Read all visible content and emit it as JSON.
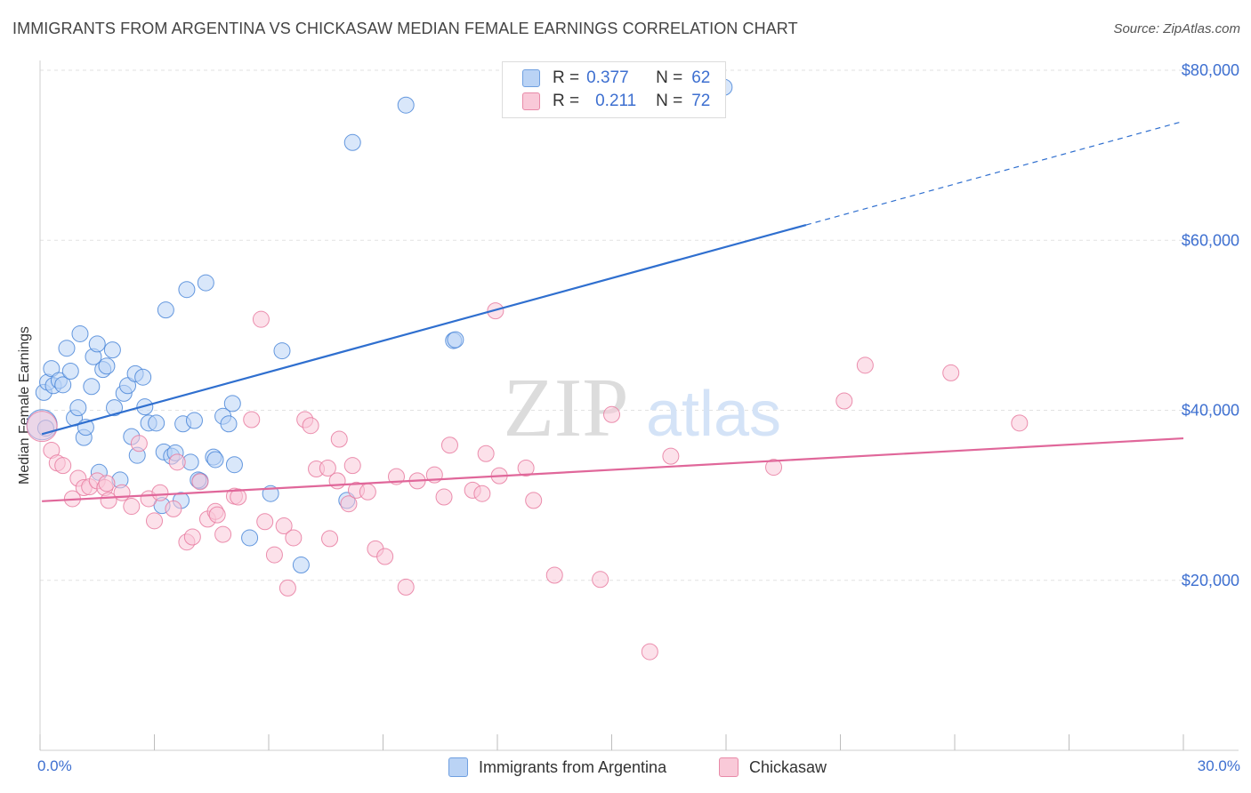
{
  "title": "IMMIGRANTS FROM ARGENTINA VS CHICKASAW MEDIAN FEMALE EARNINGS CORRELATION CHART",
  "source": "Source: ZipAtlas.com",
  "watermark": {
    "zip": "ZIP",
    "atlas": "atlas"
  },
  "colors": {
    "blue": "#4a86d8",
    "blue_fill": "#bad3f5",
    "pink": "#e87ba0",
    "pink_fill": "#f9c9d8",
    "accent_text": "#3d6fd0",
    "grid": "#e2e2e2"
  },
  "legend": {
    "rows": [
      {
        "r_label": "R =",
        "r_value": "0.377",
        "n_label": "N =",
        "n_value": "62"
      },
      {
        "r_label": "R =",
        "r_value": "0.211",
        "n_label": "N =",
        "n_value": "72"
      }
    ],
    "position": "top-center"
  },
  "bottom_legend": [
    "Immigrants from Argentina",
    "Chickasaw"
  ],
  "chart_data": {
    "type": "scatter",
    "title": "IMMIGRANTS FROM ARGENTINA VS CHICKASAW MEDIAN FEMALE EARNINGS CORRELATION CHART",
    "xlabel": "",
    "ylabel": "Median Female Earnings",
    "xlim": [
      0,
      30
    ],
    "ylim": [
      0,
      82000
    ],
    "x_tick_labels": [
      "0.0%",
      "30.0%"
    ],
    "y_tick_labels": [
      "$20,000",
      "$40,000",
      "$60,000",
      "$80,000"
    ],
    "y_ticks": [
      20000,
      40000,
      60000,
      80000
    ],
    "grid": true,
    "series": [
      {
        "name": "Immigrants from Argentina",
        "color": "#4a86d8",
        "r": 0.377,
        "n": 62,
        "trend": {
          "x": [
            0.05,
            20.1
          ],
          "y": [
            37200,
            61800
          ],
          "dashed_to": {
            "x": 30.0,
            "y": 74000
          }
        },
        "points": [
          [
            0.05,
            38300
          ],
          [
            0.1,
            42100
          ],
          [
            0.2,
            43300
          ],
          [
            0.3,
            44900
          ],
          [
            0.35,
            42900
          ],
          [
            0.5,
            43500
          ],
          [
            0.6,
            43000
          ],
          [
            0.7,
            47300
          ],
          [
            0.8,
            44600
          ],
          [
            0.9,
            39100
          ],
          [
            1.0,
            40300
          ],
          [
            1.05,
            49000
          ],
          [
            1.15,
            36800
          ],
          [
            1.2,
            38000
          ],
          [
            1.35,
            42800
          ],
          [
            1.4,
            46300
          ],
          [
            1.5,
            47800
          ],
          [
            1.65,
            44800
          ],
          [
            1.75,
            45200
          ],
          [
            1.9,
            47100
          ],
          [
            1.95,
            40300
          ],
          [
            2.2,
            42000
          ],
          [
            2.3,
            42900
          ],
          [
            2.4,
            36900
          ],
          [
            2.5,
            44300
          ],
          [
            2.55,
            34700
          ],
          [
            2.7,
            43900
          ],
          [
            2.75,
            40400
          ],
          [
            2.85,
            38500
          ],
          [
            3.05,
            38500
          ],
          [
            3.2,
            28800
          ],
          [
            3.25,
            35100
          ],
          [
            3.3,
            51800
          ],
          [
            3.45,
            34600
          ],
          [
            3.55,
            35000
          ],
          [
            3.7,
            29400
          ],
          [
            3.75,
            38400
          ],
          [
            3.85,
            54200
          ],
          [
            3.95,
            33900
          ],
          [
            4.05,
            38800
          ],
          [
            4.2,
            31700
          ],
          [
            4.35,
            55000
          ],
          [
            4.55,
            34500
          ],
          [
            4.6,
            34200
          ],
          [
            4.8,
            39300
          ],
          [
            4.95,
            38400
          ],
          [
            5.05,
            40800
          ],
          [
            5.1,
            33600
          ],
          [
            5.5,
            25000
          ],
          [
            6.05,
            30200
          ],
          [
            6.35,
            47000
          ],
          [
            6.85,
            21800
          ],
          [
            8.05,
            29400
          ],
          [
            8.2,
            71500
          ],
          [
            9.6,
            75900
          ],
          [
            10.85,
            48200
          ],
          [
            10.9,
            48300
          ],
          [
            17.95,
            78000
          ],
          [
            1.55,
            32700
          ],
          [
            2.1,
            31800
          ],
          [
            4.15,
            31800
          ],
          [
            0.15,
            37900
          ]
        ]
      },
      {
        "name": "Chickasaw",
        "color": "#e87ba0",
        "r": 0.211,
        "n": 72,
        "trend": {
          "x": [
            0.05,
            30.0
          ],
          "y": [
            29300,
            36700
          ]
        },
        "points": [
          [
            0.05,
            38100
          ],
          [
            0.3,
            35300
          ],
          [
            0.45,
            33800
          ],
          [
            0.6,
            33500
          ],
          [
            0.85,
            29600
          ],
          [
            1.0,
            32000
          ],
          [
            1.15,
            30900
          ],
          [
            1.3,
            31000
          ],
          [
            1.5,
            31700
          ],
          [
            1.7,
            30900
          ],
          [
            1.75,
            31400
          ],
          [
            1.8,
            29400
          ],
          [
            2.15,
            30300
          ],
          [
            2.4,
            28700
          ],
          [
            2.6,
            36100
          ],
          [
            2.85,
            29600
          ],
          [
            3.0,
            27000
          ],
          [
            3.15,
            30300
          ],
          [
            3.5,
            28400
          ],
          [
            3.6,
            33900
          ],
          [
            3.85,
            24500
          ],
          [
            4.0,
            25100
          ],
          [
            4.2,
            31600
          ],
          [
            4.4,
            27200
          ],
          [
            4.6,
            28100
          ],
          [
            4.65,
            27700
          ],
          [
            4.8,
            25400
          ],
          [
            5.1,
            29900
          ],
          [
            5.2,
            29800
          ],
          [
            5.55,
            38900
          ],
          [
            5.8,
            50700
          ],
          [
            5.9,
            26900
          ],
          [
            6.15,
            23000
          ],
          [
            6.4,
            26400
          ],
          [
            6.5,
            19100
          ],
          [
            6.65,
            25000
          ],
          [
            6.95,
            38900
          ],
          [
            7.1,
            38200
          ],
          [
            7.25,
            33100
          ],
          [
            7.55,
            33200
          ],
          [
            7.6,
            24900
          ],
          [
            7.8,
            31700
          ],
          [
            7.85,
            36600
          ],
          [
            8.1,
            29000
          ],
          [
            8.2,
            33500
          ],
          [
            8.3,
            30600
          ],
          [
            8.6,
            30400
          ],
          [
            8.8,
            23700
          ],
          [
            9.05,
            22800
          ],
          [
            9.35,
            32200
          ],
          [
            9.6,
            19200
          ],
          [
            9.9,
            31700
          ],
          [
            10.35,
            32400
          ],
          [
            10.6,
            29800
          ],
          [
            10.75,
            35900
          ],
          [
            11.35,
            30600
          ],
          [
            11.6,
            30200
          ],
          [
            11.7,
            34900
          ],
          [
            11.95,
            51700
          ],
          [
            12.05,
            32300
          ],
          [
            12.75,
            33200
          ],
          [
            12.95,
            29400
          ],
          [
            13.5,
            20600
          ],
          [
            14.7,
            20100
          ],
          [
            15.0,
            39500
          ],
          [
            16.0,
            11600
          ],
          [
            16.55,
            34600
          ],
          [
            19.25,
            33300
          ],
          [
            21.1,
            41100
          ],
          [
            21.65,
            45300
          ],
          [
            23.9,
            44400
          ],
          [
            25.7,
            38500
          ]
        ]
      }
    ]
  }
}
